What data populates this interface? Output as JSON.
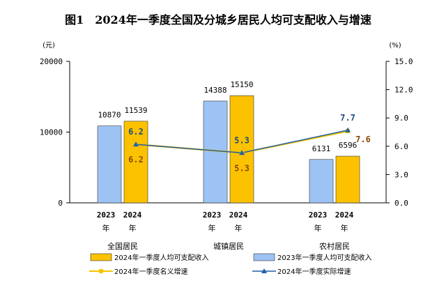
{
  "title": "图1　2024年一季度全国及分城乡居民人均可支配收入与增速",
  "left_unit": "(元)",
  "right_unit": "(%)",
  "year_suffix": "年",
  "colors": {
    "bar_2023": "#9dc3f5",
    "bar_2024": "#fcc200",
    "nominal_line": "#f5c400",
    "real_line": "#1f5fa8",
    "nominal_label": "#8a4a0b",
    "real_label": "#1f4e79"
  },
  "chart_data": {
    "type": "bar+line",
    "title": "图1　2024年一季度全国及分城乡居民人均可支配收入与增速",
    "categories": [
      "全国居民",
      "城镇居民",
      "农村居民"
    ],
    "years": [
      "2023",
      "2024"
    ],
    "series": [
      {
        "name": "2023年一季度人均可支配收入",
        "type": "bar",
        "axis": "left",
        "values": [
          10870,
          14388,
          6131
        ]
      },
      {
        "name": "2024年一季度人均可支配收入",
        "type": "bar",
        "axis": "left",
        "values": [
          11539,
          15150,
          6596
        ]
      },
      {
        "name": "2024年一季度名义增速",
        "type": "line",
        "axis": "right",
        "values": [
          6.2,
          5.3,
          7.6
        ]
      },
      {
        "name": "2024年一季度实际增速",
        "type": "line",
        "axis": "right",
        "values": [
          6.2,
          5.3,
          7.7
        ]
      }
    ],
    "left_axis": {
      "unit": "元",
      "ylim": [
        0,
        20000
      ],
      "ticks": [
        "0",
        "10000",
        "20000"
      ]
    },
    "right_axis": {
      "unit": "%",
      "ylim": [
        0,
        15
      ],
      "ticks": [
        "0.0",
        "3.0",
        "6.0",
        "9.0",
        "12.0",
        "15.0"
      ]
    },
    "legend": {
      "placement": "bottom",
      "entries": [
        "2024年一季度人均可支配收入",
        "2023年一季度人均可支配收入",
        "2024年一季度名义增速",
        "2024年一季度实际增速"
      ]
    }
  }
}
